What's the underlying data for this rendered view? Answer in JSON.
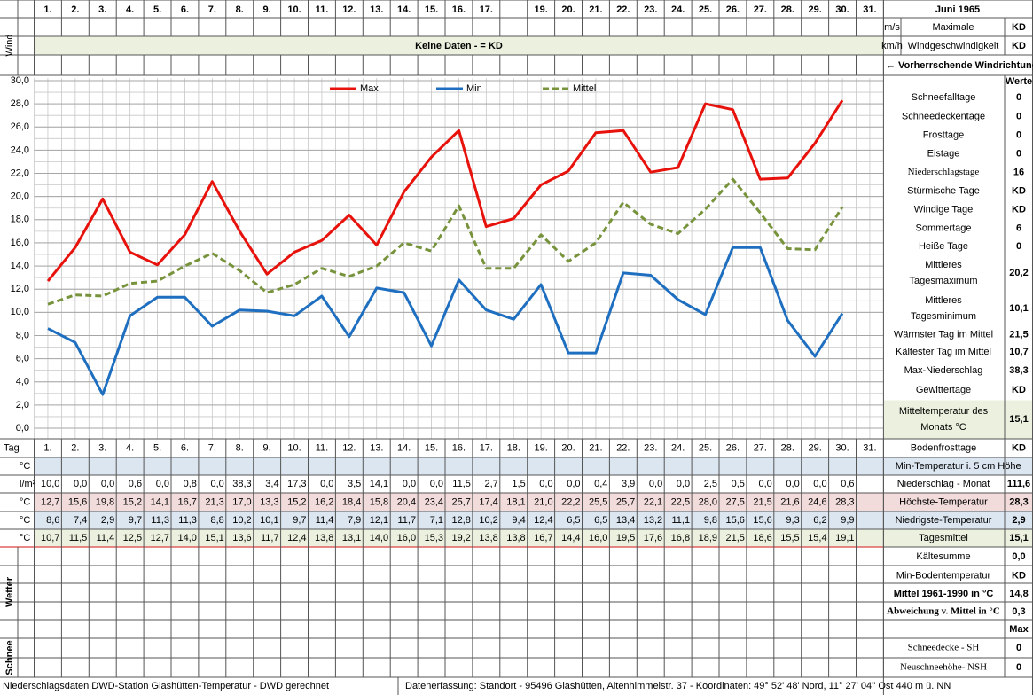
{
  "top": {
    "days": [
      "1.",
      "2.",
      "3.",
      "4.",
      "5.",
      "6.",
      "7.",
      "8.",
      "9.",
      "10.",
      "11.",
      "12.",
      "13.",
      "14.",
      "15.",
      "16.",
      "17.",
      null,
      "19.",
      "20.",
      "21.",
      "22.",
      "23.",
      "24.",
      "25.",
      "26.",
      "27.",
      "28.",
      "29.",
      "30.",
      "31."
    ],
    "title": "Juni 1965"
  },
  "wind": {
    "label": "Wind",
    "unit_ms": "m/s",
    "unit_kmh": "km/h",
    "max_label_1": "Maximale",
    "max_label_2": "Windgeschwindigkeit",
    "max_ms": "KD",
    "max_kmh": "KD",
    "no_data": "Keine Daten -  = KD",
    "direction": "← Vorherrschende Windrichtung"
  },
  "chart_data": {
    "type": "line",
    "ylim": [
      0,
      30
    ],
    "yticks": [
      {
        "value": 0,
        "label": "0,0"
      },
      {
        "value": 2,
        "label": "2,0"
      },
      {
        "value": 4,
        "label": "4,0"
      },
      {
        "value": 6,
        "label": "6,0"
      },
      {
        "value": 8,
        "label": "8,0"
      },
      {
        "value": 10,
        "label": "10,0"
      },
      {
        "value": 12,
        "label": "12,0"
      },
      {
        "value": 14,
        "label": "14,0"
      },
      {
        "value": 16,
        "label": "16,0"
      },
      {
        "value": 18,
        "label": "18,0"
      },
      {
        "value": 20,
        "label": "20,0"
      },
      {
        "value": 22,
        "label": "22,0"
      },
      {
        "value": 24,
        "label": "24,0"
      },
      {
        "value": 26,
        "label": "26,0"
      },
      {
        "value": 28,
        "label": "28,0"
      },
      {
        "value": 30,
        "label": "30,0"
      }
    ],
    "grid": true,
    "legend": "top",
    "categories": [
      "1.",
      "2.",
      "3.",
      "4.",
      "5.",
      "6.",
      "7.",
      "8.",
      "9.",
      "10.",
      "11.",
      "12.",
      "13.",
      "14.",
      "15.",
      "16.",
      "17.",
      "18.",
      "19.",
      "20.",
      "21.",
      "22.",
      "23.",
      "24.",
      "25.",
      "26.",
      "27.",
      "28.",
      "29.",
      "30.",
      "31."
    ],
    "series": [
      {
        "name": "Max",
        "color": "#e8120c",
        "dash": false,
        "values": [
          12.7,
          15.6,
          19.8,
          15.2,
          14.1,
          16.7,
          21.3,
          17.0,
          13.3,
          15.2,
          16.2,
          18.4,
          15.8,
          20.4,
          23.4,
          25.7,
          17.4,
          18.1,
          21.0,
          22.2,
          25.5,
          25.7,
          22.1,
          22.5,
          28.0,
          27.5,
          21.5,
          21.6,
          24.6,
          28.3,
          null
        ],
        "value_labels": [
          "12,7",
          "15,6",
          "19,8",
          "15,2",
          "14,1",
          "16,7",
          "21,3",
          "17,0",
          "13,3",
          "15,2",
          "16,2",
          "18,4",
          "15,8",
          "20,4",
          "23,4",
          "25,7",
          "17,4",
          "18,1",
          "21,0",
          "22,2",
          "25,5",
          "25,7",
          "22,1",
          "22,5",
          "28,0",
          "27,5",
          "21,5",
          "21,6",
          "24,6",
          "28,3",
          null
        ]
      },
      {
        "name": "Min",
        "color": "#1f6fc0",
        "dash": false,
        "values": [
          8.6,
          7.4,
          2.9,
          9.7,
          11.3,
          11.3,
          8.8,
          10.2,
          10.1,
          9.7,
          11.4,
          7.9,
          12.1,
          11.7,
          7.1,
          12.8,
          10.2,
          9.4,
          12.4,
          6.5,
          6.5,
          13.4,
          13.2,
          11.1,
          9.8,
          15.6,
          15.6,
          9.3,
          6.2,
          9.9,
          null
        ],
        "value_labels": [
          "8,6",
          "7,4",
          "2,9",
          "9,7",
          "11,3",
          "11,3",
          "8,8",
          "10,2",
          "10,1",
          "9,7",
          "11,4",
          "7,9",
          "12,1",
          "11,7",
          "7,1",
          "12,8",
          "10,2",
          "9,4",
          "12,4",
          "6,5",
          "6,5",
          "13,4",
          "13,2",
          "11,1",
          "9,8",
          "15,6",
          "15,6",
          "9,3",
          "6,2",
          "9,9",
          null
        ]
      },
      {
        "name": "Mittel",
        "color": "#77933c",
        "dash": true,
        "values": [
          10.7,
          11.5,
          11.4,
          12.5,
          12.7,
          14.0,
          15.1,
          13.6,
          11.7,
          12.4,
          13.8,
          13.1,
          14.0,
          16.0,
          15.3,
          19.2,
          13.8,
          13.8,
          16.7,
          14.4,
          16.0,
          19.5,
          17.6,
          16.8,
          18.9,
          21.5,
          18.6,
          15.5,
          15.4,
          19.1,
          null
        ],
        "value_labels": [
          "10,7",
          "11,5",
          "11,4",
          "12,5",
          "12,7",
          "14,0",
          "15,1",
          "13,6",
          "11,7",
          "12,4",
          "13,8",
          "13,1",
          "14,0",
          "16,0",
          "15,3",
          "19,2",
          "13,8",
          "13,8",
          "16,7",
          "14,4",
          "16,0",
          "19,5",
          "17,6",
          "16,8",
          "18,9",
          "21,5",
          "18,6",
          "15,5",
          "15,4",
          "19,1",
          null
        ]
      }
    ]
  },
  "table": {
    "tag_label": "Tag",
    "units": [
      "°C",
      "l/m²",
      "°C",
      "°C",
      "°C"
    ],
    "precip": [
      "10,0",
      "0,0",
      "0,0",
      "0,6",
      "0,0",
      "0,8",
      "0,0",
      "38,3",
      "3,4",
      "17,3",
      "0,0",
      "3,5",
      "14,1",
      "0,0",
      "0,0",
      "11,5",
      "2,7",
      "1,5",
      "0,0",
      "0,0",
      "0,4",
      "3,9",
      "0,0",
      "0,0",
      "2,5",
      "0,5",
      "0,0",
      "0,0",
      "0,0",
      "0,6"
    ],
    "weather_label": "Wetter",
    "snow_label": "Schnee"
  },
  "stats": {
    "rows": [
      {
        "value": "Werte"
      },
      {
        "label": [
          "Schneefalltage"
        ],
        "value": "0"
      },
      {
        "label": [
          "Schneedeckentage"
        ],
        "value": "0"
      },
      {
        "label": [
          "Frosttage"
        ],
        "value": "0"
      },
      {
        "label": [
          "Eistage"
        ],
        "value": "0"
      },
      {
        "label": [
          "Niederschlagstage"
        ],
        "value": "16"
      },
      {
        "label": [
          "Stürmische Tage"
        ],
        "value": "KD"
      },
      {
        "label": [
          "Windige Tage"
        ],
        "value": "KD"
      },
      {
        "label": [
          "Sommertage"
        ],
        "value": "6"
      },
      {
        "label": [
          "Heiße Tage"
        ],
        "value": "0"
      },
      {
        "label": [
          "Mittleres",
          "Tagesmaximum"
        ],
        "value": "20,2"
      },
      {
        "label": [
          "Mittleres",
          "Tagesminimum"
        ],
        "value": "10,1"
      },
      {
        "label": [
          "Wärmster Tag im Mittel"
        ],
        "value": "21,5"
      },
      {
        "label": [
          "Kältester Tag im Mittel"
        ],
        "value": "10,7"
      },
      {
        "label": [
          "Max-Niederschlag"
        ],
        "value": "38,3"
      },
      {
        "label": [
          "Gewittertage"
        ],
        "value": "KD"
      },
      {
        "label": [
          "Mitteltemperatur des",
          "Monats °C"
        ],
        "value": "15,1"
      },
      {
        "label": [
          "Bodenfrosttage"
        ],
        "value": "KD"
      },
      {
        "label": [
          "Min-Temperatur i. 5 cm Höhe"
        ]
      },
      {
        "label": [
          "Niederschlag - Monat"
        ],
        "value": "111,6"
      },
      {
        "label": [
          "Höchste-Temperatur"
        ],
        "value": "28,3"
      },
      {
        "label": [
          "Niedrigste-Temperatur"
        ],
        "value": "2,9"
      },
      {
        "label": [
          "Tagesmittel"
        ],
        "value": "15,1"
      },
      {
        "label": [
          "Kältesumme"
        ],
        "value": "0,0"
      },
      {
        "label": [
          "Min-Bodentemperatur"
        ],
        "value": "KD"
      },
      {
        "label": [
          "Mittel 1961-1990 in °C"
        ],
        "value": "14,8"
      },
      {
        "label": [
          "Abweichung v. Mittel in °C"
        ],
        "value": "0,3"
      },
      {
        "value": "Max"
      },
      {
        "label": [
          "Schneedecke -  SH"
        ],
        "value": "0"
      },
      {
        "label": [
          "Neuschneehöhe- NSH"
        ],
        "value": "0"
      }
    ]
  },
  "footer": {
    "left": "Niederschlagsdaten DWD-Station Glashütten-Temperatur -  DWD gerechnet",
    "right": "Datenerfassung: Standort -  95496  Glashütten, Altenhimmelstr. 37 - Koordinaten:  49° 52' 48' Nord,   11° 27' 04'' Ost   440 m ü. NN"
  }
}
